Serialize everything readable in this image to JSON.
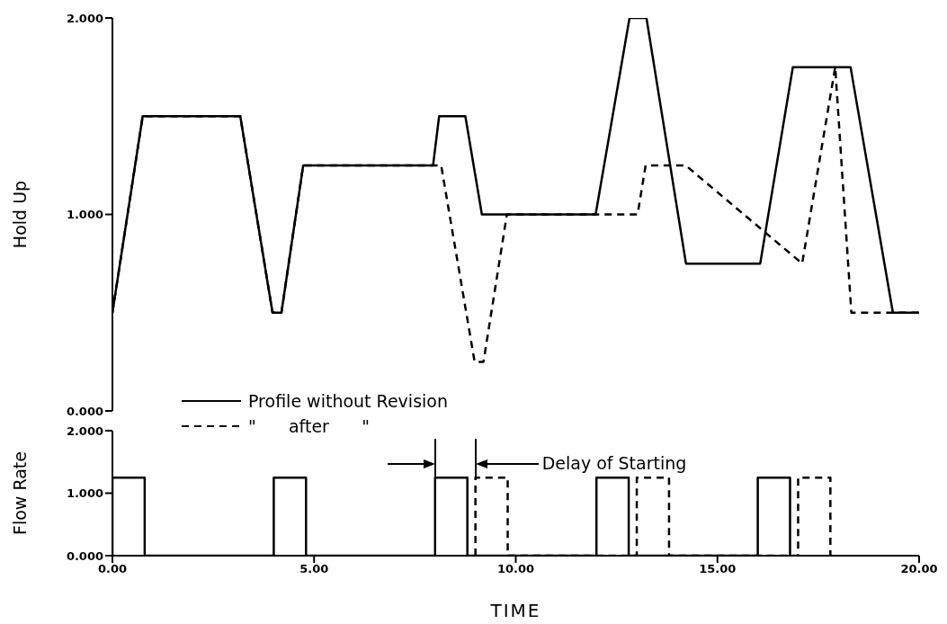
{
  "chart_data": [
    {
      "type": "line",
      "ylabel": "Hold Up",
      "xlim": [
        0,
        20
      ],
      "ylim": [
        0,
        2
      ],
      "yticks": [
        {
          "value": 0,
          "label": "0.000"
        },
        {
          "value": 1,
          "label": "1.000"
        },
        {
          "value": 2,
          "label": "2.000"
        }
      ],
      "tick_labels": "y",
      "legend": "bottom",
      "series": [
        {
          "name": "Profile without Revision",
          "color": "#000000",
          "line_style": "solid",
          "x": [
            0,
            0.75,
            3.17,
            3.97,
            4.19,
            4.73,
            7.95,
            8.1,
            8.75,
            9.16,
            11.98,
            12.82,
            13.24,
            14.22,
            16.06,
            16.87,
            18.3,
            19.35,
            20
          ],
          "values": [
            0.5,
            1.5,
            1.5,
            0.5,
            0.5,
            1.25,
            1.25,
            1.5,
            1.5,
            1.0,
            1.0,
            2.0,
            2.0,
            0.75,
            0.75,
            1.75,
            1.75,
            0.5,
            0.5
          ]
        },
        {
          "name": "\"      after      \"",
          "color": "#000000",
          "line_style": "dashed",
          "x": [
            0,
            0.75,
            3.17,
            3.97,
            4.19,
            4.73,
            8.15,
            8.98,
            9.2,
            9.78,
            13.02,
            13.22,
            14.21,
            17.1,
            17.92,
            18.32,
            20
          ],
          "values": [
            0.5,
            1.5,
            1.5,
            0.5,
            0.5,
            1.25,
            1.25,
            0.25,
            0.25,
            1.0,
            1.0,
            1.25,
            1.25,
            0.75,
            1.75,
            0.5,
            0.5
          ]
        }
      ]
    },
    {
      "type": "line",
      "ylabel": "Flow Rate",
      "xlabel": "TIME",
      "xlim": [
        0,
        20
      ],
      "xticks": [
        {
          "value": 0,
          "label": "0.00"
        },
        {
          "value": 5,
          "label": "5.00"
        },
        {
          "value": 10,
          "label": "10.00"
        },
        {
          "value": 15,
          "label": "15.00"
        },
        {
          "value": 20,
          "label": "20.00"
        }
      ],
      "ylim": [
        0,
        2
      ],
      "yticks": [
        {
          "value": 0,
          "label": "0.000"
        },
        {
          "value": 1,
          "label": "1.000"
        },
        {
          "value": 2,
          "label": "2.000"
        }
      ],
      "annotations": [
        "Delay of Starting"
      ],
      "series": [
        {
          "color": "#000000",
          "line_style": "solid",
          "x": [
            0,
            0,
            0.8,
            0.8,
            4,
            4,
            4.8,
            4.8,
            8,
            8,
            8.8,
            8.8,
            12,
            12,
            12.8,
            12.8,
            16,
            16,
            16.8,
            16.8
          ],
          "values": [
            0,
            1.25,
            1.25,
            0,
            0,
            1.25,
            1.25,
            0,
            0,
            1.25,
            1.25,
            0,
            0,
            1.25,
            1.25,
            0,
            0,
            1.25,
            1.25,
            0
          ]
        },
        {
          "color": "#000000",
          "line_style": "dashed",
          "x": [
            9,
            9,
            9.8,
            9.8,
            13,
            13,
            13.8,
            13.8,
            17,
            17,
            17.8,
            17.8
          ],
          "values": [
            0,
            1.25,
            1.25,
            0,
            0,
            1.25,
            1.25,
            0,
            0,
            1.25,
            1.25,
            0
          ]
        }
      ]
    }
  ]
}
